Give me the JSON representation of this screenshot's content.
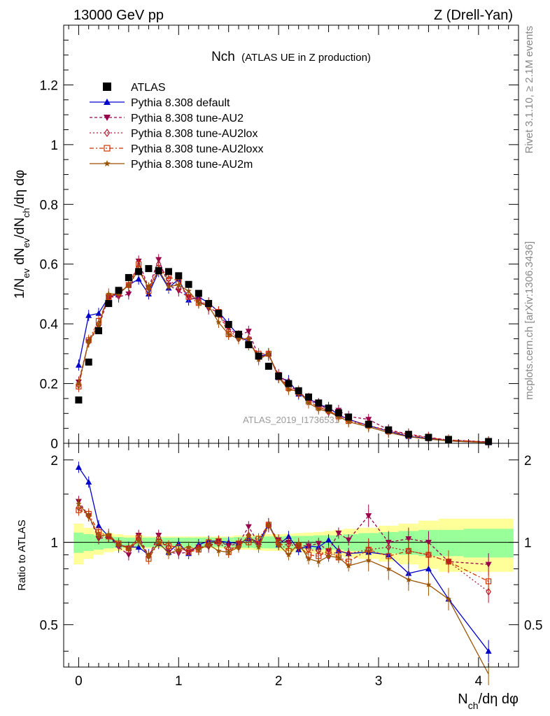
{
  "header": {
    "left": "13000 GeV pp",
    "right": "Z (Drell-Yan)"
  },
  "main_title": {
    "prefix": "Nch",
    "suffix": "(ATLAS UE in Z production)"
  },
  "side_labels": {
    "rivet": "Rivet 3.1.10, ≥ 2.1M events",
    "mcplots": "mcplots.cern.ch [arXiv:1306.3436]"
  },
  "watermark": "ATLAS_2019_I1736531",
  "colors": {
    "data": "#000000",
    "default": "#0000cc",
    "au2": "#99004c",
    "au2lox": "#b31a33",
    "au2loxx": "#cc3300",
    "au2m": "#995200",
    "band_inner": "#99ff99",
    "band_outer": "#ffff99"
  },
  "chart_data": [
    {
      "type": "scatter",
      "panel": "main",
      "ylabel": "1/N_ev dN_ev/dN_ch/dη dφ",
      "xlim": [
        -0.15,
        4.4
      ],
      "ylim": [
        0,
        1.4
      ],
      "yticks": [
        0,
        0.2,
        0.4,
        0.6,
        0.8,
        1,
        1.2
      ],
      "ytick_labels": [
        "0",
        "0.2",
        "0.4",
        "0.6",
        "0.8",
        "1",
        "1.2"
      ],
      "legend_position": "top-left",
      "x": [
        0,
        0.1,
        0.2,
        0.3,
        0.4,
        0.5,
        0.6,
        0.7,
        0.8,
        0.9,
        1.0,
        1.1,
        1.2,
        1.3,
        1.4,
        1.5,
        1.6,
        1.7,
        1.8,
        1.9,
        2.0,
        2.1,
        2.2,
        2.3,
        2.4,
        2.5,
        2.6,
        2.7,
        2.9,
        3.1,
        3.3,
        3.5,
        3.7,
        4.1
      ],
      "series": [
        {
          "name": "ATLAS",
          "key": "data",
          "marker": "square",
          "dash": "none",
          "values": [
            0.145,
            0.272,
            0.377,
            0.468,
            0.512,
            0.555,
            0.575,
            0.585,
            0.578,
            0.575,
            0.561,
            0.532,
            0.502,
            0.468,
            0.435,
            0.398,
            0.365,
            0.33,
            0.292,
            0.258,
            0.225,
            0.2,
            0.176,
            0.155,
            0.135,
            0.118,
            0.102,
            0.088,
            0.064,
            0.045,
            0.03,
            0.02,
            0.013,
            0.006
          ]
        },
        {
          "name": "Pythia 8.308 default",
          "key": "default",
          "marker": "triangle-up",
          "dash": "none",
          "values": [
            0.262,
            0.428,
            0.435,
            0.49,
            0.5,
            0.53,
            0.55,
            0.5,
            0.575,
            0.52,
            0.55,
            0.48,
            0.49,
            0.47,
            0.44,
            0.4,
            0.36,
            0.34,
            0.29,
            0.3,
            0.22,
            0.21,
            0.165,
            0.15,
            0.13,
            0.12,
            0.095,
            0.08,
            0.059,
            0.041,
            0.023,
            0.016,
            0.008,
            0.002
          ]
        },
        {
          "name": "Pythia 8.308 tune-AU2",
          "key": "au2",
          "marker": "triangle-down",
          "dash": "4,3",
          "values": [
            0.205,
            0.34,
            0.39,
            0.49,
            0.49,
            0.5,
            0.61,
            0.52,
            0.615,
            0.53,
            0.51,
            0.49,
            0.48,
            0.45,
            0.44,
            0.385,
            0.36,
            0.375,
            0.29,
            0.295,
            0.23,
            0.2,
            0.17,
            0.15,
            0.133,
            0.11,
            0.11,
            0.09,
            0.08,
            0.045,
            0.031,
            0.02,
            0.011,
            0.005
          ]
        },
        {
          "name": "Pythia 8.308 tune-AU2lox",
          "key": "au2lox",
          "marker": "diamond",
          "dash": "2,3",
          "values": [
            0.195,
            0.34,
            0.4,
            0.49,
            0.5,
            0.53,
            0.59,
            0.52,
            0.6,
            0.55,
            0.52,
            0.5,
            0.475,
            0.46,
            0.43,
            0.38,
            0.35,
            0.35,
            0.285,
            0.3,
            0.22,
            0.195,
            0.17,
            0.145,
            0.125,
            0.105,
            0.095,
            0.08,
            0.06,
            0.043,
            0.028,
            0.018,
            0.011,
            0.004
          ]
        },
        {
          "name": "Pythia 8.308 tune-AU2loxx",
          "key": "au2loxx",
          "marker": "square-open",
          "dash": "6,3,2,3",
          "values": [
            0.19,
            0.345,
            0.41,
            0.49,
            0.505,
            0.53,
            0.6,
            0.51,
            0.58,
            0.56,
            0.54,
            0.49,
            0.47,
            0.47,
            0.44,
            0.365,
            0.36,
            0.33,
            0.3,
            0.3,
            0.225,
            0.185,
            0.17,
            0.14,
            0.12,
            0.11,
            0.09,
            0.075,
            0.06,
            0.04,
            0.028,
            0.018,
            0.011,
            0.004
          ]
        },
        {
          "name": "Pythia 8.308 tune-AU2m",
          "key": "au2m",
          "marker": "star",
          "dash": "none",
          "values": [
            0.2,
            0.34,
            0.395,
            0.5,
            0.5,
            0.53,
            0.58,
            0.52,
            0.58,
            0.525,
            0.53,
            0.51,
            0.47,
            0.46,
            0.405,
            0.365,
            0.35,
            0.35,
            0.28,
            0.3,
            0.22,
            0.18,
            0.175,
            0.135,
            0.115,
            0.105,
            0.09,
            0.072,
            0.055,
            0.036,
            0.022,
            0.014,
            0.008,
            0.002
          ]
        }
      ]
    },
    {
      "type": "line",
      "panel": "ratio",
      "ylabel": "Ratio to ATLAS",
      "xlabel": "N_ch/dη dφ",
      "xlim": [
        -0.15,
        4.4
      ],
      "ylim": [
        0.35,
        2.3
      ],
      "yticks": [
        0.5,
        1,
        2
      ],
      "ytick_labels": [
        "0.5",
        "1",
        "2"
      ],
      "xticks": [
        0,
        1,
        2,
        3,
        4
      ],
      "xtick_labels": [
        "0",
        "1",
        "2",
        "3",
        "4"
      ],
      "x": [
        0,
        0.1,
        0.2,
        0.3,
        0.4,
        0.5,
        0.6,
        0.7,
        0.8,
        0.9,
        1.0,
        1.1,
        1.2,
        1.3,
        1.4,
        1.5,
        1.6,
        1.7,
        1.8,
        1.9,
        2.0,
        2.1,
        2.2,
        2.3,
        2.4,
        2.5,
        2.6,
        2.7,
        2.9,
        3.1,
        3.3,
        3.5,
        3.7,
        4.1
      ],
      "band_edges": [
        -0.05,
        0.05,
        0.15,
        0.25,
        0.35,
        0.45,
        0.55,
        0.65,
        0.75,
        0.85,
        0.95,
        1.05,
        1.15,
        1.25,
        1.35,
        1.45,
        1.55,
        1.65,
        1.75,
        1.85,
        1.95,
        2.05,
        2.15,
        2.25,
        2.35,
        2.45,
        2.55,
        2.65,
        2.8,
        3.0,
        3.2,
        3.4,
        3.6,
        3.85,
        4.35
      ],
      "band_inner": [
        0.085,
        0.07,
        0.06,
        0.05,
        0.045,
        0.04,
        0.04,
        0.04,
        0.04,
        0.04,
        0.04,
        0.04,
        0.04,
        0.04,
        0.04,
        0.04,
        0.045,
        0.045,
        0.05,
        0.05,
        0.05,
        0.055,
        0.055,
        0.055,
        0.06,
        0.06,
        0.06,
        0.07,
        0.08,
        0.09,
        0.1,
        0.11,
        0.11,
        0.12
      ],
      "band_outer": [
        0.17,
        0.13,
        0.1,
        0.08,
        0.07,
        0.06,
        0.06,
        0.05,
        0.05,
        0.05,
        0.05,
        0.05,
        0.05,
        0.05,
        0.05,
        0.05,
        0.06,
        0.06,
        0.065,
        0.07,
        0.07,
        0.075,
        0.08,
        0.085,
        0.09,
        0.1,
        0.11,
        0.12,
        0.13,
        0.15,
        0.17,
        0.2,
        0.22,
        0.22
      ],
      "series": [
        {
          "name": "Pythia 8.308 default",
          "key": "default",
          "values": [
            1.88,
            1.66,
            1.15,
            1.05,
            0.98,
            0.96,
            0.96,
            0.9,
            0.99,
            0.92,
            0.99,
            0.91,
            0.98,
            1.01,
            1.01,
            1.0,
            0.99,
            1.03,
            1.0,
            1.17,
            0.98,
            1.05,
            0.94,
            0.97,
            0.96,
            1.02,
            0.93,
            0.91,
            0.92,
            0.9,
            0.77,
            0.8,
            0.62,
            0.4
          ]
        },
        {
          "name": "Pythia 8.308 tune-AU2",
          "key": "au2",
          "values": [
            1.41,
            1.25,
            1.03,
            1.05,
            0.96,
            0.9,
            1.06,
            0.89,
            1.06,
            0.92,
            0.91,
            0.92,
            0.96,
            0.96,
            1.01,
            0.97,
            0.99,
            1.14,
            0.99,
            1.14,
            1.02,
            1.0,
            0.97,
            0.97,
            0.99,
            0.93,
            1.08,
            1.02,
            1.25,
            1.0,
            1.03,
            1.0,
            0.85,
            0.83
          ]
        },
        {
          "name": "Pythia 8.308 tune-AU2lox",
          "key": "au2lox",
          "values": [
            1.34,
            1.25,
            1.06,
            1.05,
            0.98,
            0.95,
            1.03,
            0.89,
            1.04,
            0.96,
            0.93,
            0.94,
            0.95,
            0.98,
            0.99,
            0.95,
            0.96,
            1.06,
            0.98,
            1.16,
            0.98,
            0.98,
            0.97,
            0.94,
            0.93,
            0.89,
            0.93,
            0.91,
            0.94,
            0.96,
            0.93,
            0.9,
            0.85,
            0.66
          ]
        },
        {
          "name": "Pythia 8.308 tune-AU2loxx",
          "key": "au2loxx",
          "values": [
            1.31,
            1.27,
            1.09,
            1.05,
            0.99,
            0.95,
            1.04,
            0.87,
            1.0,
            0.97,
            0.96,
            0.92,
            0.94,
            1.0,
            1.01,
            0.92,
            0.99,
            1.0,
            1.03,
            1.16,
            1.0,
            0.93,
            0.97,
            0.9,
            0.89,
            0.93,
            0.88,
            0.85,
            0.94,
            0.89,
            0.93,
            0.9,
            0.85,
            0.72
          ]
        },
        {
          "name": "Pythia 8.308 tune-AU2m",
          "key": "au2m",
          "values": [
            1.38,
            1.25,
            1.05,
            1.07,
            0.98,
            0.95,
            1.01,
            0.89,
            1.0,
            0.91,
            0.94,
            0.96,
            0.94,
            0.98,
            0.93,
            0.92,
            0.96,
            1.06,
            0.96,
            1.16,
            0.98,
            0.9,
            0.99,
            0.87,
            0.85,
            0.89,
            0.88,
            0.82,
            0.86,
            0.8,
            0.73,
            0.7,
            0.62,
            0.33
          ]
        }
      ]
    }
  ]
}
